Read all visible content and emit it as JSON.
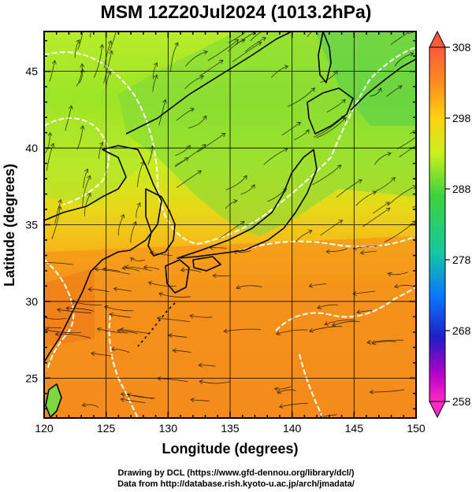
{
  "title": "MSM 12Z20Jul2024 (1013.2hPa)",
  "map": {
    "xlabel": "Longitude (degrees)",
    "ylabel": "Latitude  (degrees)",
    "x_ticks": [
      "120",
      "125",
      "130",
      "135",
      "140",
      "145",
      "150"
    ],
    "y_ticks": [
      "25",
      "30",
      "35",
      "40",
      "45"
    ],
    "lon_range": [
      120,
      150
    ],
    "lat_range": [
      22.4,
      47.6
    ],
    "field": "temperature (K) with streamlines",
    "coastline_color": "#000000",
    "contour_color": "#ffffff"
  },
  "colorbar": {
    "labels": [
      "308",
      "298",
      "288",
      "278",
      "268",
      "258"
    ],
    "range": [
      258,
      308
    ],
    "colors": [
      "#ff5a3c",
      "#ff8c1e",
      "#ffd20f",
      "#c8f01e",
      "#3cd23c",
      "#14c8a0",
      "#0a78ff",
      "#1e1ec8",
      "#b400c8",
      "#ff28c8"
    ]
  },
  "credits": {
    "line1": "Drawing by DCL (https://www.gfd-dennou.org/library/dcl/)",
    "line2": "Data from http://database.rish.kyoto-u.ac.jp/arch/jmadata/"
  }
}
